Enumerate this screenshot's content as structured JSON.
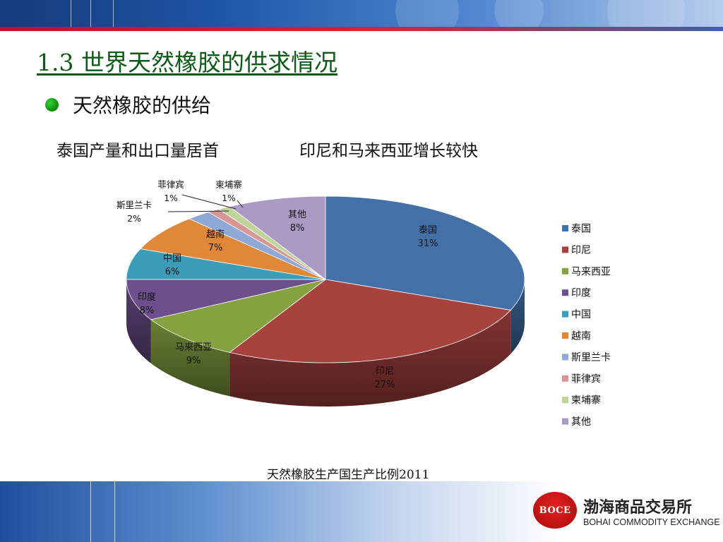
{
  "slide": {
    "title": "1.3 世界天然橡胶的供求情况",
    "bullet": "天然橡胶的供给",
    "note_left": "泰国产量和出口量居首",
    "note_right": "印尼和马来西亚增长较快"
  },
  "logo": {
    "badge": "BOCE",
    "name_cn": "渤海商品交易所",
    "name_en": "BOHAI COMMODITY EXCHANGE"
  },
  "chart_data": {
    "type": "pie",
    "title": "天然橡胶生产国生产比例2011",
    "legend_position": "right",
    "slices": [
      {
        "name": "泰国",
        "label": "31%",
        "value": 31,
        "color": "#4470a8"
      },
      {
        "name": "印尼",
        "label": "27%",
        "value": 27,
        "color": "#a8423f"
      },
      {
        "name": "马来西亚",
        "label": "9%",
        "value": 9,
        "color": "#86a342"
      },
      {
        "name": "印度",
        "label": "8%",
        "value": 8,
        "color": "#6e4f8e"
      },
      {
        "name": "中国",
        "label": "6%",
        "value": 6,
        "color": "#3b9db8"
      },
      {
        "name": "越南",
        "label": "7%",
        "value": 7,
        "color": "#e0873a"
      },
      {
        "name": "斯里兰卡",
        "label": "2%",
        "value": 2,
        "color": "#8fa9d6"
      },
      {
        "name": "菲律宾",
        "label": "1%",
        "value": 1,
        "color": "#d79593"
      },
      {
        "name": "柬埔寨",
        "label": "1%",
        "value": 1,
        "color": "#bed49a"
      },
      {
        "name": "其他",
        "label": "8%",
        "value": 8,
        "color": "#a99bc3"
      }
    ]
  }
}
